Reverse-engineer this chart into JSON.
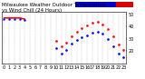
{
  "title": "Milwaukee Weather Outdoor Temperature vs Wind Chill (24 Hours)",
  "title_line1": "Milwaukee Weather Outdoor Temperature",
  "title_line2": "vs Wind Chill (24 Hours)",
  "hours": [
    0,
    1,
    2,
    3,
    4,
    5,
    6,
    7,
    8,
    9,
    10,
    11,
    12,
    13,
    14,
    15,
    16,
    17,
    18,
    19,
    20,
    21,
    22,
    23
  ],
  "temp": [
    47,
    47,
    47,
    47,
    46,
    null,
    null,
    null,
    null,
    null,
    28,
    24,
    27,
    32,
    36,
    39,
    41,
    43,
    44,
    42,
    38,
    32,
    25,
    21
  ],
  "windchill": [
    46,
    46,
    46,
    46,
    45,
    null,
    null,
    null,
    null,
    null,
    22,
    18,
    21,
    26,
    29,
    31,
    33,
    35,
    36,
    34,
    30,
    24,
    18,
    15
  ],
  "temp_color": "#ff0000",
  "wc_color": "#0000ff",
  "bg_color": "#ffffff",
  "grid_color": "#c0c0c0",
  "ylim": [
    10,
    52
  ],
  "ytick_right_vals": [
    20,
    30,
    40,
    50
  ],
  "legend_blue": "#0000cc",
  "legend_red": "#dd0000",
  "title_fontsize": 4.0,
  "tick_fontsize": 3.5
}
